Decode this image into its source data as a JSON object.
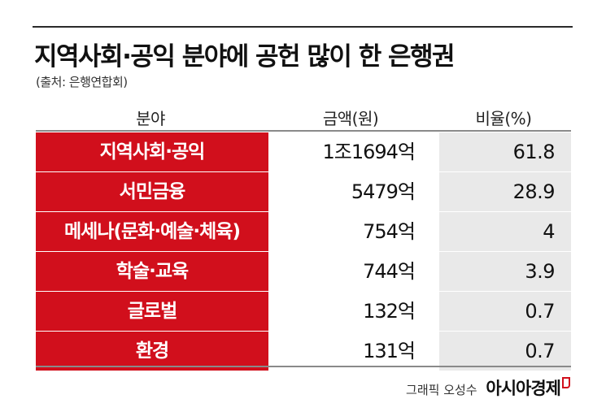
{
  "header": {
    "title": "지역사회·공익 분야에 공헌 많이 한 은행권",
    "source": "(출처: 은행연합회)"
  },
  "table": {
    "columns": [
      "분야",
      "금액(원)",
      "비율(%)"
    ],
    "rows": [
      {
        "category": "지역사회·공익",
        "amount": "1조1694억",
        "percent": "61.8"
      },
      {
        "category": "서민금융",
        "amount": "5479억",
        "percent": "28.9"
      },
      {
        "category": "메세나(문화·예술·체육)",
        "amount": "754억",
        "percent": "4"
      },
      {
        "category": "학술·교육",
        "amount": "744억",
        "percent": "3.9"
      },
      {
        "category": "글로벌",
        "amount": "132억",
        "percent": "0.7"
      },
      {
        "category": "환경",
        "amount": "131억",
        "percent": "0.7"
      }
    ]
  },
  "footer": {
    "credit": "그래픽 오성수",
    "brand": "아시아경제"
  },
  "colors": {
    "category_fill": "#d10f1c",
    "percent_fill": "#e9e9e9"
  },
  "chart_data": {
    "type": "table",
    "title": "지역사회·공익 분야에 공헌 많이 한 은행권",
    "columns": [
      "분야",
      "금액(원)",
      "비율(%)"
    ],
    "categories": [
      "지역사회·공익",
      "서민금융",
      "메세나(문화·예술·체육)",
      "학술·교육",
      "글로벌",
      "환경"
    ],
    "amounts": [
      "1조1694억",
      "5479억",
      "754억",
      "744억",
      "132억",
      "131억"
    ],
    "values": [
      61.8,
      28.9,
      4,
      3.9,
      0.7,
      0.7
    ]
  }
}
